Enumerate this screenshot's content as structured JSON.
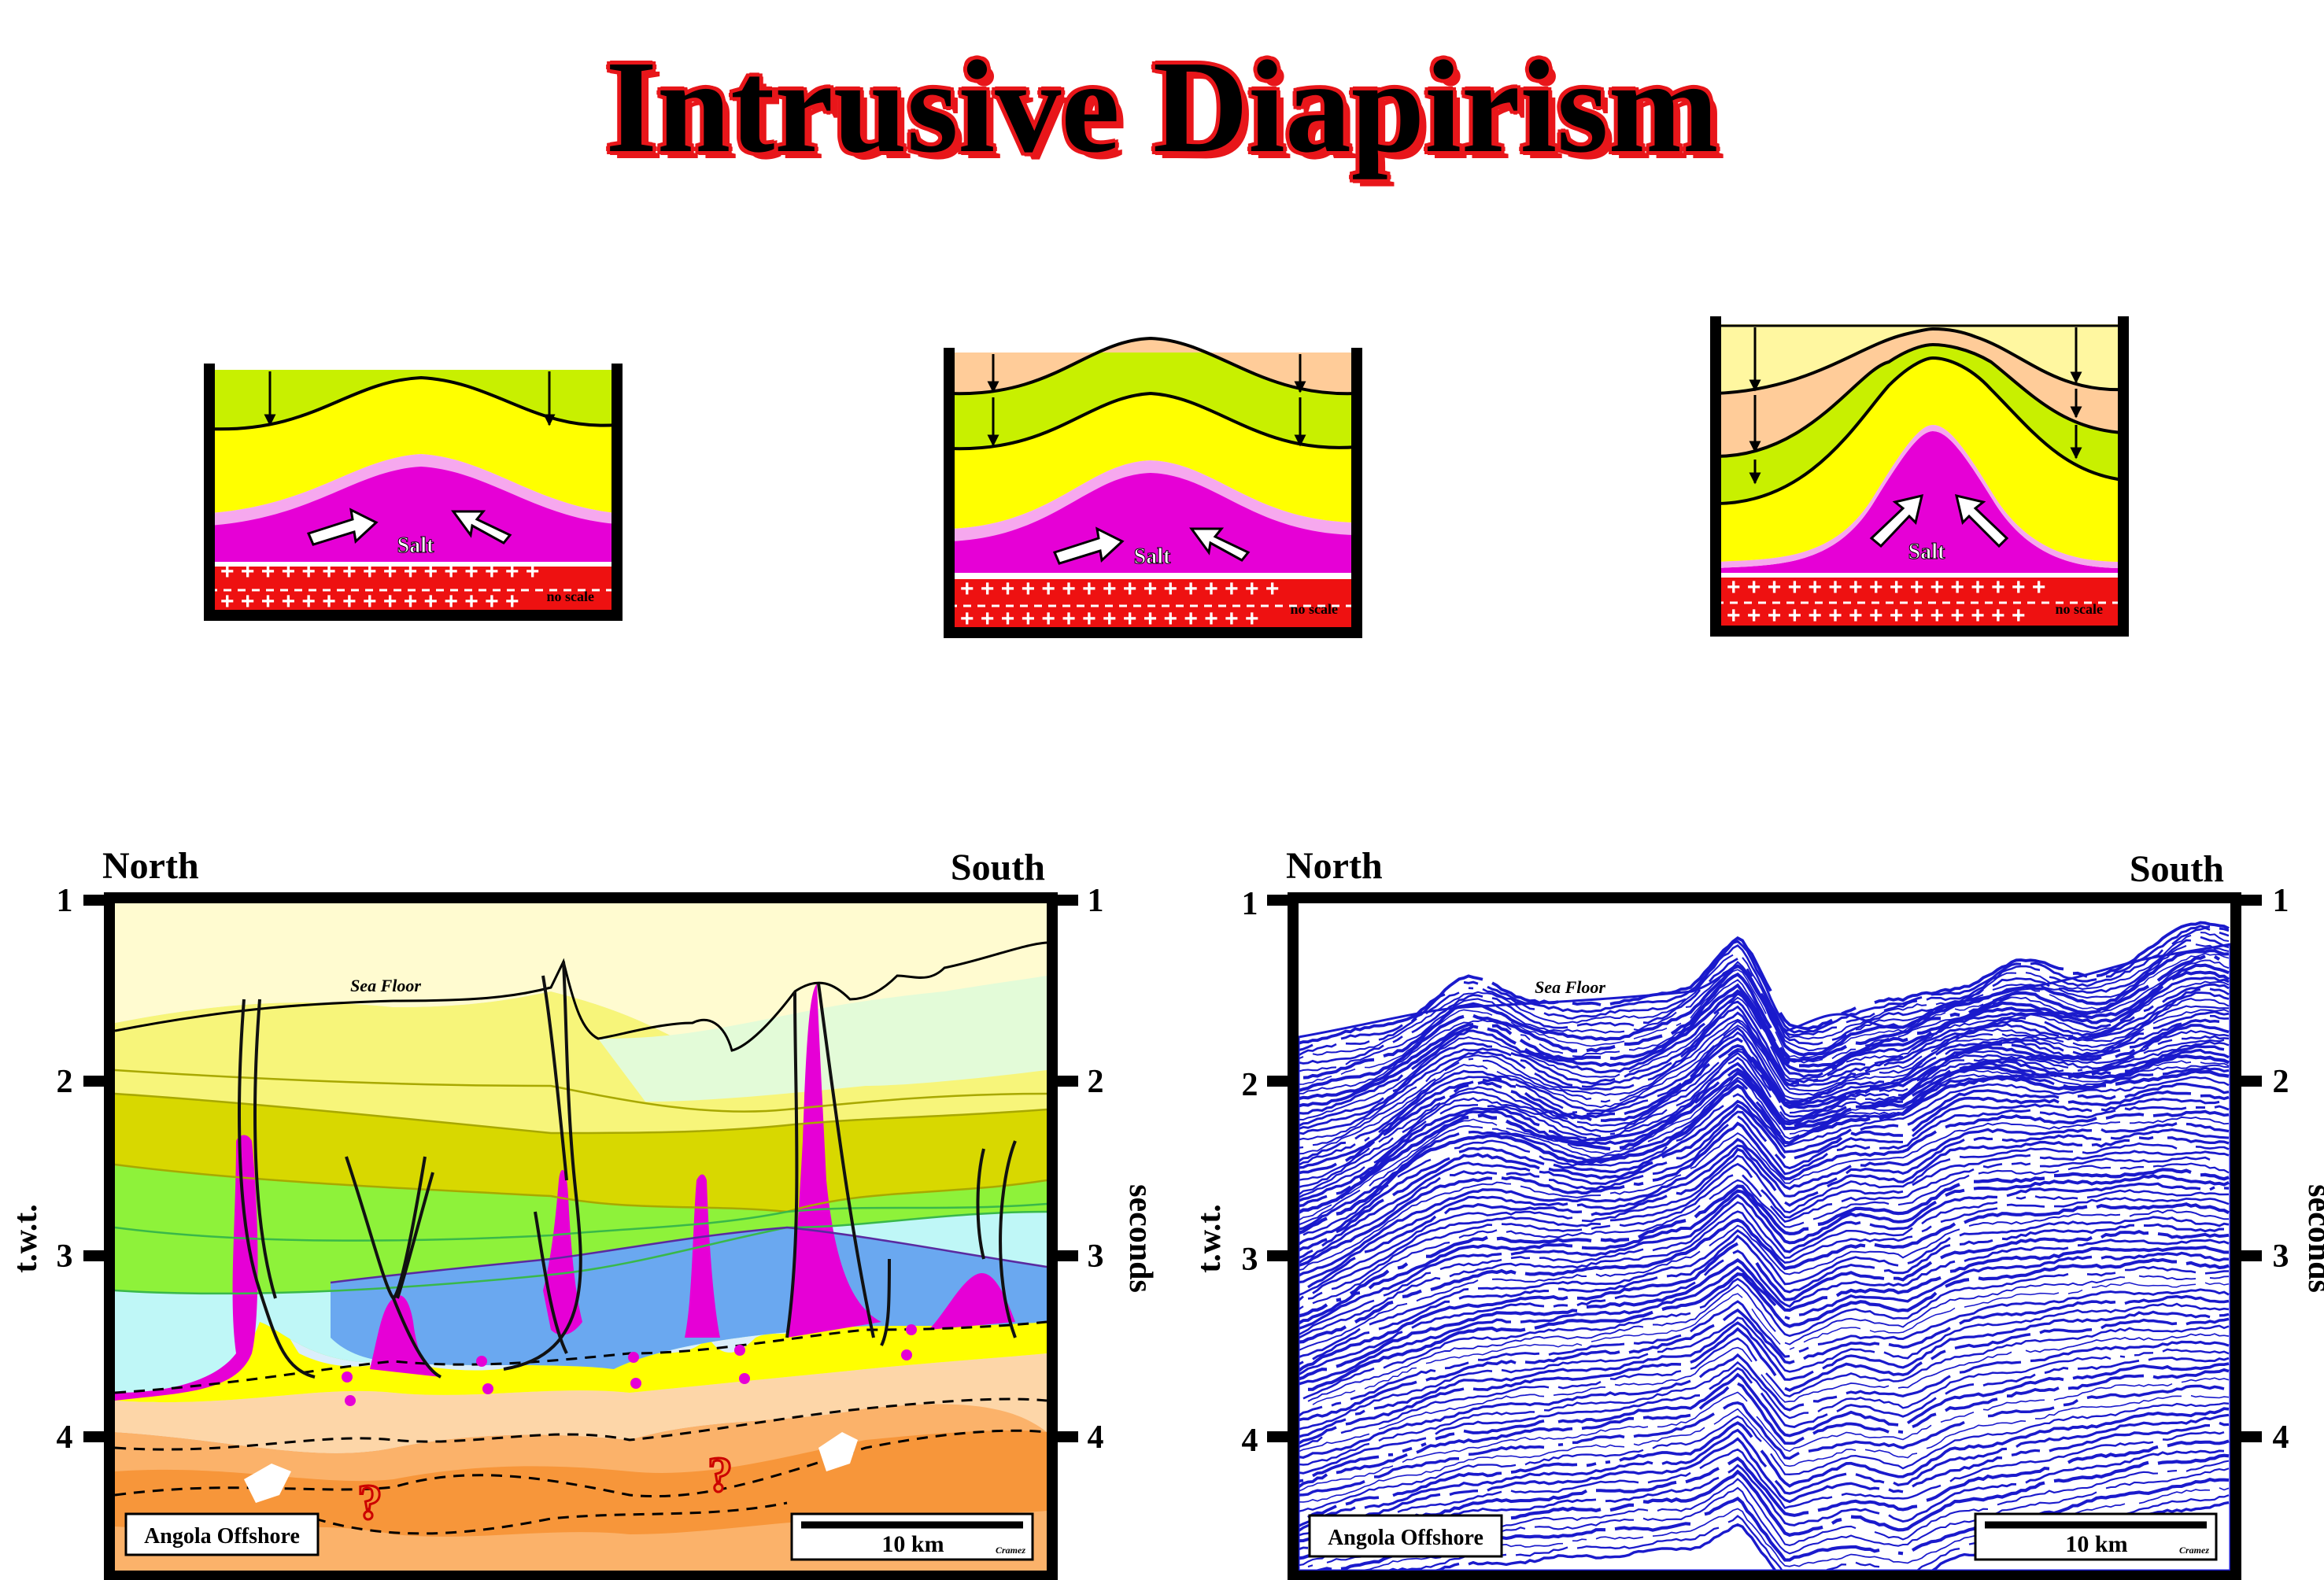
{
  "title": "Intrusive Diapirism",
  "stages": [
    {
      "salt_label": "Salt",
      "scale_note": "no scale"
    },
    {
      "salt_label": "Salt",
      "scale_note": "no scale"
    },
    {
      "salt_label": "Salt",
      "scale_note": "no scale"
    }
  ],
  "interpretation": {
    "left_direction": "North",
    "right_direction": "South",
    "seafloor_label": "Sea Floor",
    "left_axis_label": "t.w.t.",
    "right_axis_label": "seconds",
    "ticks": [
      "1",
      "2",
      "3",
      "4"
    ],
    "location": "Angola Offshore",
    "scale_bar": "10 km",
    "credit": "Cramez",
    "question_mark": "?"
  },
  "seismic": {
    "left_direction": "North",
    "right_direction": "South",
    "seafloor_label": "Sea Floor",
    "left_axis_label": "t.w.t.",
    "right_axis_label": "seconds",
    "ticks": [
      "1",
      "2",
      "3",
      "4"
    ],
    "location": "Angola Offshore",
    "scale_bar": "10 km",
    "credit": "Cramez"
  },
  "colors": {
    "title_text": "#000000",
    "title_outline": "#e8161a",
    "salt": "#e600d6",
    "basement": "#ee1111",
    "seismic_trace": "#1a1acc"
  }
}
